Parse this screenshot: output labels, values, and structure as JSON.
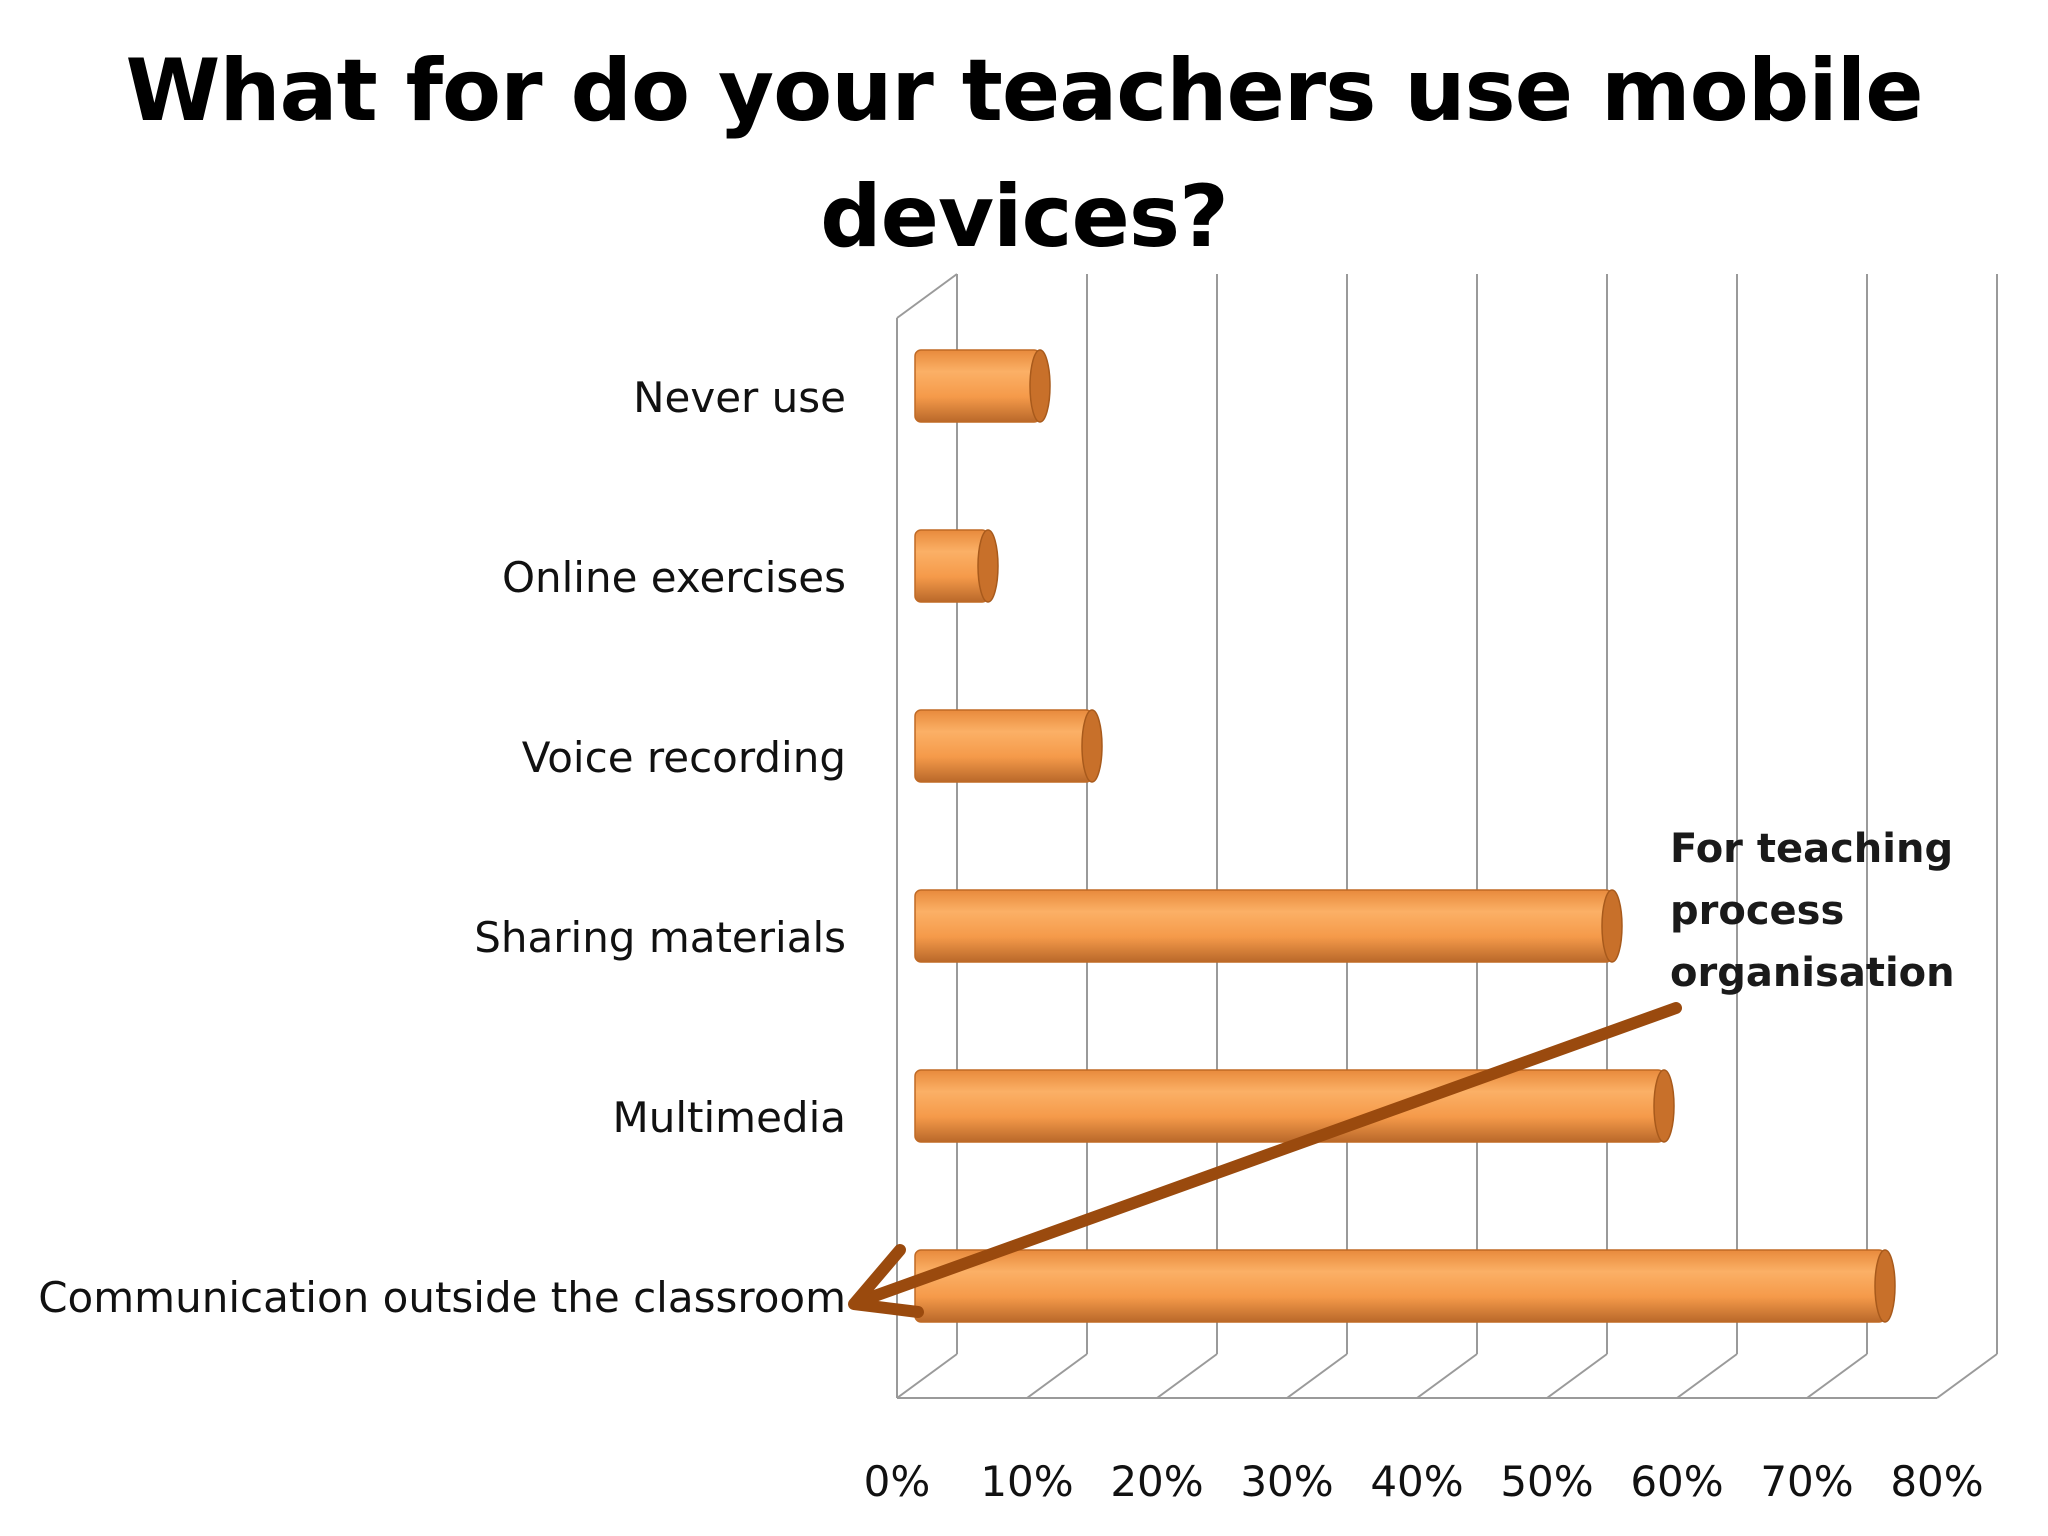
{
  "chart_data": {
    "type": "bar",
    "orientation": "horizontal",
    "title_lines": [
      "What for do your teachers use mobile",
      "devices?"
    ],
    "categories": [
      "Never use",
      "Online exercises",
      "Voice recording",
      "Sharing materials",
      "Multimedia",
      "Communication outside the classroom"
    ],
    "values": [
      11,
      7,
      15,
      55,
      59,
      76
    ],
    "value_unit": "%",
    "xlim": [
      0,
      80
    ],
    "x_ticks": [
      "0%",
      "10%",
      "20%",
      "30%",
      "40%",
      "50%",
      "60%",
      "70%",
      "80%"
    ],
    "grid": true,
    "bar_color": "#f59a4a",
    "annotation": {
      "lines": [
        "For teaching",
        "process",
        "organisation"
      ],
      "points_to": "Communication outside the classroom",
      "arrow_color": "#9a4a0e"
    }
  }
}
